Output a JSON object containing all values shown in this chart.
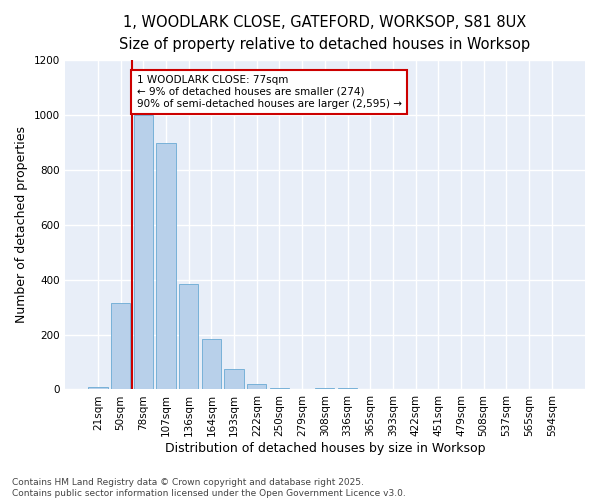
{
  "title_line1": "1, WOODLARK CLOSE, GATEFORD, WORKSOP, S81 8UX",
  "title_line2": "Size of property relative to detached houses in Worksop",
  "xlabel": "Distribution of detached houses by size in Worksop",
  "ylabel": "Number of detached properties",
  "categories": [
    "21sqm",
    "50sqm",
    "78sqm",
    "107sqm",
    "136sqm",
    "164sqm",
    "193sqm",
    "222sqm",
    "250sqm",
    "279sqm",
    "308sqm",
    "336sqm",
    "365sqm",
    "393sqm",
    "422sqm",
    "451sqm",
    "479sqm",
    "508sqm",
    "537sqm",
    "565sqm",
    "594sqm"
  ],
  "bar_values": [
    10,
    315,
    1000,
    900,
    385,
    185,
    75,
    20,
    5,
    0,
    5,
    5,
    0,
    0,
    0,
    0,
    0,
    0,
    0,
    0,
    0
  ],
  "bar_color": "#b8d0ea",
  "bar_edge_color": "#6aaad4",
  "vline_index": 2,
  "annotation_title": "1 WOODLARK CLOSE: 77sqm",
  "annotation_line2": "← 9% of detached houses are smaller (274)",
  "annotation_line3": "90% of semi-detached houses are larger (2,595) →",
  "annotation_box_color": "#ffffff",
  "annotation_box_edge": "#cc0000",
  "vline_color": "#cc0000",
  "ylim": [
    0,
    1200
  ],
  "yticks": [
    0,
    200,
    400,
    600,
    800,
    1000,
    1200
  ],
  "plot_bg": "#e8eef8",
  "fig_bg": "#ffffff",
  "grid_color": "#ffffff",
  "footer_line1": "Contains HM Land Registry data © Crown copyright and database right 2025.",
  "footer_line2": "Contains public sector information licensed under the Open Government Licence v3.0.",
  "title_fontsize": 10.5,
  "subtitle_fontsize": 9.5,
  "axis_label_fontsize": 9,
  "tick_fontsize": 7.5,
  "annotation_fontsize": 7.5,
  "footer_fontsize": 6.5
}
